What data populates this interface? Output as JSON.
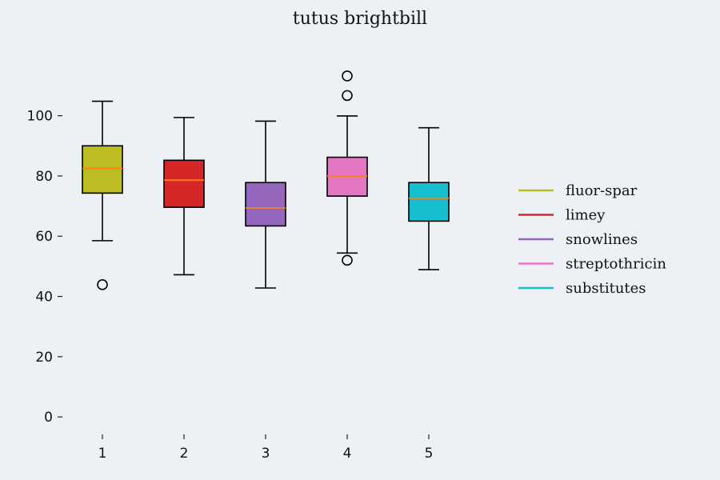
{
  "chart_data": {
    "type": "box",
    "title": "tutus brightbill",
    "xlabel": "",
    "ylabel": "",
    "categories": [
      "1",
      "2",
      "3",
      "4",
      "5"
    ],
    "ylim": [
      -5,
      123
    ],
    "yticks": [
      0,
      20,
      40,
      60,
      80,
      100
    ],
    "grid": false,
    "legend_position": "right",
    "median_color": "#ff7f0e",
    "series": [
      {
        "name": "fluor-spar",
        "color": "#bcbd22",
        "whisker_low": 58.5,
        "q1": 74.3,
        "median": 82.5,
        "q3": 90.0,
        "whisker_high": 104.8,
        "outliers": [
          43.9
        ]
      },
      {
        "name": "limey",
        "color": "#d62728",
        "whisker_low": 47.2,
        "q1": 69.6,
        "median": 78.6,
        "q3": 85.2,
        "whisker_high": 99.4,
        "outliers": []
      },
      {
        "name": "snowlines",
        "color": "#9467bd",
        "whisker_low": 42.8,
        "q1": 63.4,
        "median": 69.4,
        "q3": 77.8,
        "whisker_high": 98.2,
        "outliers": []
      },
      {
        "name": "streptothricin",
        "color": "#e377c2",
        "whisker_low": 54.4,
        "q1": 73.3,
        "median": 80.0,
        "q3": 86.2,
        "whisker_high": 99.9,
        "outliers": [
          52.0,
          106.7,
          113.2
        ]
      },
      {
        "name": "substitutes",
        "color": "#17becf",
        "whisker_low": 48.9,
        "q1": 65.0,
        "median": 72.6,
        "q3": 77.8,
        "whisker_high": 96.0,
        "outliers": []
      }
    ]
  }
}
